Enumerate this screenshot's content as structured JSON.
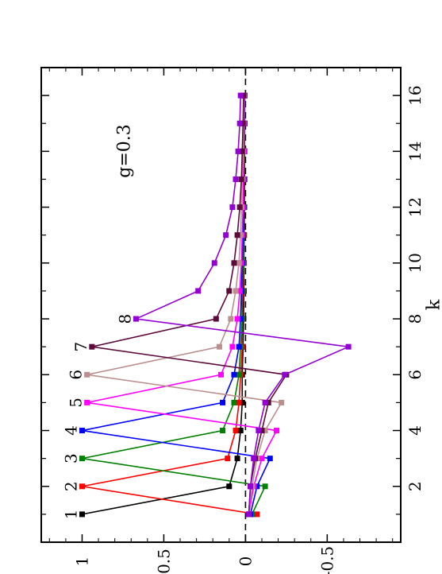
{
  "chart_data": {
    "type": "line",
    "orientation": "rotated-90-ccw",
    "xlabel": "k",
    "ylabel": "",
    "xlim": [
      0,
      17
    ],
    "ylim": [
      -0.95,
      1.25
    ],
    "x_ticks": [
      2,
      4,
      6,
      8,
      10,
      12,
      14,
      16
    ],
    "x_tick_labels": [
      "2",
      "4",
      "6",
      "8",
      "10",
      "12",
      "14",
      "16"
    ],
    "y_ticks": [
      1,
      0.5,
      0,
      -0.5
    ],
    "y_tick_labels": [
      "1",
      "0.5",
      "0",
      "-0.5"
    ],
    "reference_line": {
      "y": 0,
      "style": "dashed"
    },
    "annotation": "g=0.3",
    "x": [
      1,
      2,
      3,
      4,
      5,
      6,
      7,
      8,
      9,
      10,
      11,
      12,
      13,
      14,
      15,
      16
    ],
    "series": [
      {
        "label": "1",
        "color": "#000000",
        "values": [
          1.0,
          0.1,
          0.05,
          0.03,
          0.02,
          0.02,
          0.015,
          0.012,
          0.01,
          0.01,
          0.008,
          0.007,
          0.006,
          0.006,
          0.005,
          0.005
        ]
      },
      {
        "label": "2",
        "color": "#ff0000",
        "values": [
          -0.07,
          1.0,
          0.11,
          0.06,
          0.04,
          0.03,
          0.02,
          0.02,
          0.015,
          0.012,
          0.01,
          0.01,
          0.008,
          0.007,
          0.006,
          0.005
        ]
      },
      {
        "label": "3",
        "color": "#008000",
        "values": [
          -0.04,
          -0.12,
          1.0,
          0.14,
          0.07,
          0.04,
          0.03,
          0.02,
          0.02,
          0.015,
          0.012,
          0.01,
          0.01,
          0.008,
          0.007,
          0.006
        ]
      },
      {
        "label": "4",
        "color": "#0000ff",
        "values": [
          -0.03,
          -0.07,
          -0.15,
          1.0,
          0.14,
          0.07,
          0.04,
          0.03,
          0.025,
          0.02,
          0.015,
          0.012,
          0.01,
          0.01,
          0.008,
          0.007
        ]
      },
      {
        "label": "5",
        "color": "#ff00ff",
        "values": [
          -0.02,
          -0.05,
          -0.1,
          -0.19,
          0.97,
          0.15,
          0.08,
          0.05,
          0.035,
          0.025,
          0.02,
          0.015,
          0.012,
          0.01,
          0.01,
          0.008
        ]
      },
      {
        "label": "6",
        "color": "#bc8f8f",
        "values": [
          -0.02,
          -0.04,
          -0.07,
          -0.12,
          -0.22,
          0.97,
          0.16,
          0.09,
          0.06,
          0.04,
          0.03,
          0.025,
          0.02,
          0.015,
          0.012,
          0.01
        ]
      },
      {
        "label": "7",
        "color": "#5c0a3c",
        "values": [
          -0.02,
          -0.03,
          -0.06,
          -0.1,
          -0.14,
          -0.25,
          0.94,
          0.18,
          0.1,
          0.07,
          0.05,
          0.035,
          0.025,
          0.02,
          0.015,
          0.012
        ]
      },
      {
        "label": "8",
        "color": "#9400d3",
        "values": [
          -0.02,
          -0.03,
          -0.05,
          -0.08,
          -0.12,
          -0.24,
          -0.63,
          0.67,
          0.29,
          0.19,
          0.12,
          0.08,
          0.06,
          0.045,
          0.035,
          0.03
        ]
      }
    ]
  }
}
